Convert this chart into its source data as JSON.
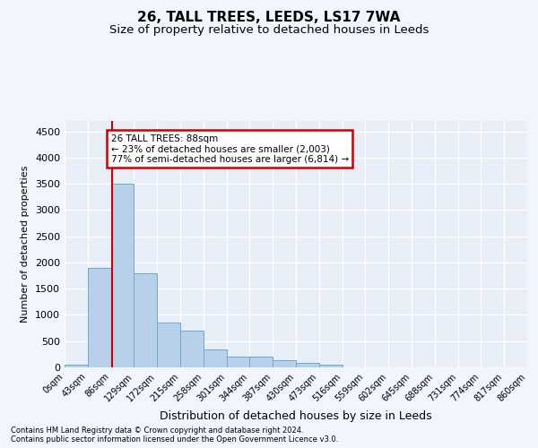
{
  "title": "26, TALL TREES, LEEDS, LS17 7WA",
  "subtitle": "Size of property relative to detached houses in Leeds",
  "xlabel": "Distribution of detached houses by size in Leeds",
  "ylabel": "Number of detached properties",
  "footer_line1": "Contains HM Land Registry data © Crown copyright and database right 2024.",
  "footer_line2": "Contains public sector information licensed under the Open Government Licence v3.0.",
  "bin_edges": [
    0,
    43,
    86,
    129,
    172,
    215,
    258,
    301,
    344,
    387,
    430,
    473,
    516,
    559,
    602,
    645,
    688,
    731,
    774,
    817,
    860
  ],
  "bar_heights": [
    50,
    1900,
    3500,
    1800,
    850,
    700,
    350,
    200,
    200,
    130,
    90,
    50,
    0,
    0,
    0,
    0,
    0,
    0,
    0,
    0
  ],
  "bar_color": "#b8d0ea",
  "bar_edge_color": "#6aaad4",
  "property_size": 88,
  "vline_color": "#cc0000",
  "annotation_text": "26 TALL TREES: 88sqm\n← 23% of detached houses are smaller (2,003)\n77% of semi-detached houses are larger (6,814) →",
  "annotation_box_color": "#cc0000",
  "annotation_text_color": "#000000",
  "ylim": [
    0,
    4700
  ],
  "yticks": [
    0,
    500,
    1000,
    1500,
    2000,
    2500,
    3000,
    3500,
    4000,
    4500
  ],
  "bg_color": "#f2f5fb",
  "plot_bg_color": "#e8eef8",
  "grid_color": "#ffffff",
  "title_fontsize": 11,
  "subtitle_fontsize": 9.5
}
